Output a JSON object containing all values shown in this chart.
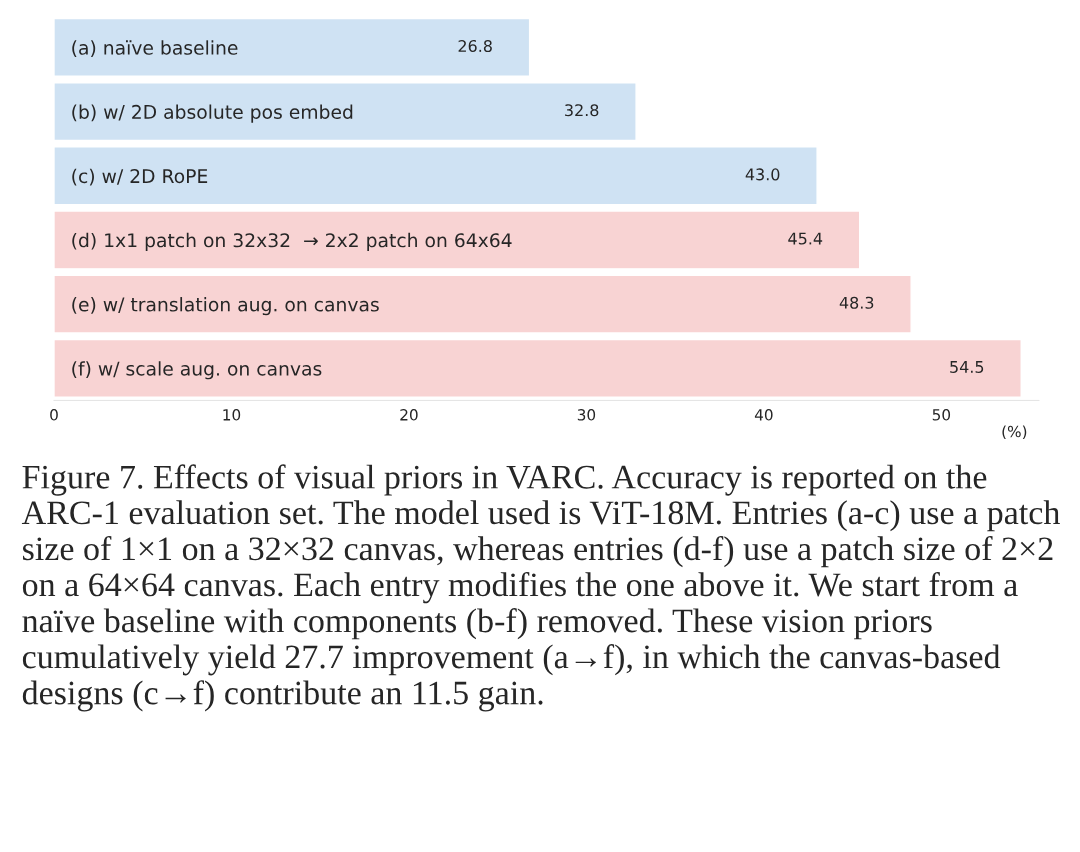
{
  "chart_data": {
    "type": "bar",
    "orientation": "horizontal",
    "categories": [
      "(a) naïve baseline",
      "(b) w/ 2D absolute pos embed",
      "(c) w/ 2D RoPE",
      "(d) 1x1 patch on 32x32  → 2x2 patch on 64x64",
      "(e) w/ translation aug. on canvas",
      "(f) w/ scale aug. on canvas"
    ],
    "values": [
      26.8,
      32.8,
      43.0,
      45.4,
      48.3,
      54.5
    ],
    "colors": [
      "#cfe2f3",
      "#cfe2f3",
      "#cfe2f3",
      "#f8d3d3",
      "#f8d3d3",
      "#f8d3d3"
    ],
    "value_labels": [
      "26.8",
      "32.8",
      "43.0",
      "45.4",
      "48.3",
      "54.5"
    ],
    "xlim": [
      0,
      55.5
    ],
    "xticks": [
      0,
      10,
      20,
      30,
      40,
      50
    ],
    "xlabel": "(%)",
    "grid": false,
    "legend": false,
    "annotations": [
      "Figure 7. Effects of visual priors in VARC. Accuracy is reported on the ARC-1 evaluation set. The model used is ViT-18M. Entries (a-c) use a patch size of 1×1 on a 32×32 canvas, whereas entries (d-f) use a patch size of 2×2 on a 64×64 canvas. Each entry modifies the one above it. We start from a naïve baseline with components (b-f) removed. These vision priors cumulatively yield 27.7 improvement (a→f), in which the canvas-based designs (c→f) contribute an 11.5 gain."
    ]
  }
}
